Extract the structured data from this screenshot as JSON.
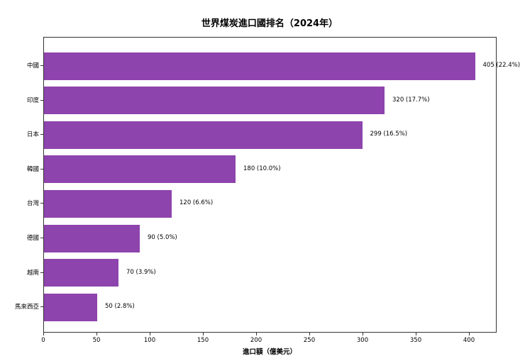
{
  "chart_data": {
    "type": "bar",
    "orientation": "horizontal",
    "title": "世界煤炭進口國排名（2024年）",
    "xlabel": "進口額（億美元）",
    "ylabel": "",
    "xlim": [
      0,
      426
    ],
    "xticks": [
      0,
      50,
      100,
      150,
      200,
      250,
      300,
      350,
      400
    ],
    "grid": false,
    "legend": null,
    "bar_color": "#8e44ad",
    "categories": [
      "中國",
      "印度",
      "日本",
      "韓國",
      "台灣",
      "德國",
      "越南",
      "馬來西亞"
    ],
    "values": [
      405,
      320,
      299,
      180,
      120,
      90,
      70,
      50
    ],
    "shares": [
      "22.4%",
      "17.7%",
      "16.5%",
      "10.0%",
      "6.6%",
      "5.0%",
      "3.9%",
      "2.8%"
    ],
    "labels": [
      "405（22.4%）",
      "320（17.7%）",
      "299（16.5%）",
      "180（10.0%）",
      "120（6.6%）",
      "90（5.0%）",
      "70（3.9%）",
      "50（2.8%）"
    ]
  }
}
